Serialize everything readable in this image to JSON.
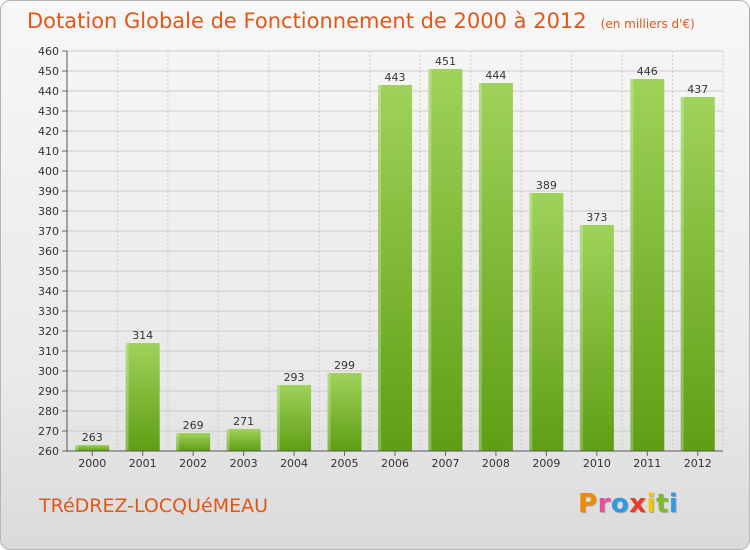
{
  "header": {
    "title": "Dotation Globale de Fonctionnement de 2000 à 2012",
    "unit": "(en milliers d'€)"
  },
  "footer": {
    "commune": "TRéDREZ-LOCQUéMEAU",
    "logo_letters": [
      "P",
      "r",
      "o",
      "x",
      "i",
      "t",
      "i"
    ],
    "logo_colors": [
      "#f28a00",
      "#e94f9a",
      "#2f9be0",
      "#e63c2a",
      "#f5c400",
      "#7dba2a",
      "#2f9be0"
    ]
  },
  "colors": {
    "bar_light": "#9fd25a",
    "bar_dark": "#5f9e14",
    "grid": "#cccccc",
    "title": "#e05818"
  },
  "chart_data": {
    "type": "bar",
    "categories": [
      "2000",
      "2001",
      "2002",
      "2003",
      "2004",
      "2005",
      "2006",
      "2007",
      "2008",
      "2009",
      "2010",
      "2011",
      "2012"
    ],
    "values": [
      263,
      314,
      269,
      271,
      293,
      299,
      443,
      451,
      444,
      389,
      373,
      446,
      437
    ],
    "ylim": [
      260,
      460
    ],
    "ytick_step": 10,
    "grid": true,
    "legend": "none"
  }
}
